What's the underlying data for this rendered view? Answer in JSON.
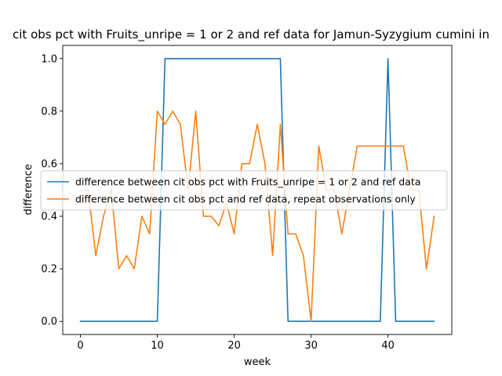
{
  "chart_data": {
    "type": "line",
    "title": "cit obs pct with Fruits_unripe = 1 or 2 and ref data for Jamun-Syzygium cumini in",
    "xlabel": "week",
    "ylabel": "difference",
    "xlim": [
      -2.3,
      48.3
    ],
    "ylim": [
      -0.05,
      1.05
    ],
    "xticks": [
      0,
      10,
      20,
      30,
      40
    ],
    "yticks": [
      0.0,
      0.2,
      0.4,
      0.6,
      0.8,
      1.0
    ],
    "grid": false,
    "legend_placement": "center",
    "series": [
      {
        "name": "difference between cit obs pct with Fruits_unripe = 1 or 2 and ref data",
        "color": "#1f77b4",
        "x": [
          0,
          1,
          2,
          3,
          4,
          5,
          6,
          7,
          8,
          9,
          10,
          11,
          12,
          13,
          14,
          15,
          16,
          17,
          18,
          19,
          20,
          21,
          22,
          23,
          24,
          25,
          26,
          27,
          28,
          29,
          30,
          31,
          32,
          33,
          34,
          35,
          36,
          37,
          38,
          39,
          40,
          41,
          42,
          43,
          44,
          45,
          46
        ],
        "y": [
          0,
          0,
          0,
          0,
          0,
          0,
          0,
          0,
          0,
          0,
          0,
          1,
          1,
          1,
          1,
          1,
          1,
          1,
          1,
          1,
          1,
          1,
          1,
          1,
          1,
          1,
          1,
          0,
          0,
          0,
          0,
          0,
          0,
          0,
          0,
          0,
          0,
          0,
          0,
          0,
          1,
          0,
          0,
          0,
          0,
          0,
          0
        ]
      },
      {
        "name": "difference between cit obs pct and ref data, repeat observations only",
        "color": "#ff7f0e",
        "x": [
          0,
          1,
          2,
          3,
          4,
          5,
          6,
          7,
          8,
          9,
          10,
          11,
          12,
          13,
          14,
          15,
          16,
          17,
          18,
          19,
          20,
          21,
          22,
          23,
          24,
          25,
          26,
          27,
          28,
          29,
          30,
          31,
          32,
          33,
          34,
          35,
          36,
          37,
          38,
          39,
          40,
          41,
          42,
          43,
          44,
          45,
          46
        ],
        "y": [
          0.5,
          0.5,
          0.25,
          0.4,
          0.5,
          0.2,
          0.25,
          0.2,
          0.4,
          0.333,
          0.8,
          0.75,
          0.8,
          0.75,
          0.5,
          0.8,
          0.4,
          0.4,
          0.364,
          0.45,
          0.333,
          0.6,
          0.6,
          0.75,
          0.6,
          0.25,
          0.75,
          0.333,
          0.333,
          0.25,
          0.0,
          0.667,
          0.5,
          0.5,
          0.333,
          0.5,
          0.667,
          0.667,
          0.667,
          0.667,
          0.667,
          0.667,
          0.667,
          0.5,
          0.5,
          0.2,
          0.4
        ]
      }
    ]
  }
}
